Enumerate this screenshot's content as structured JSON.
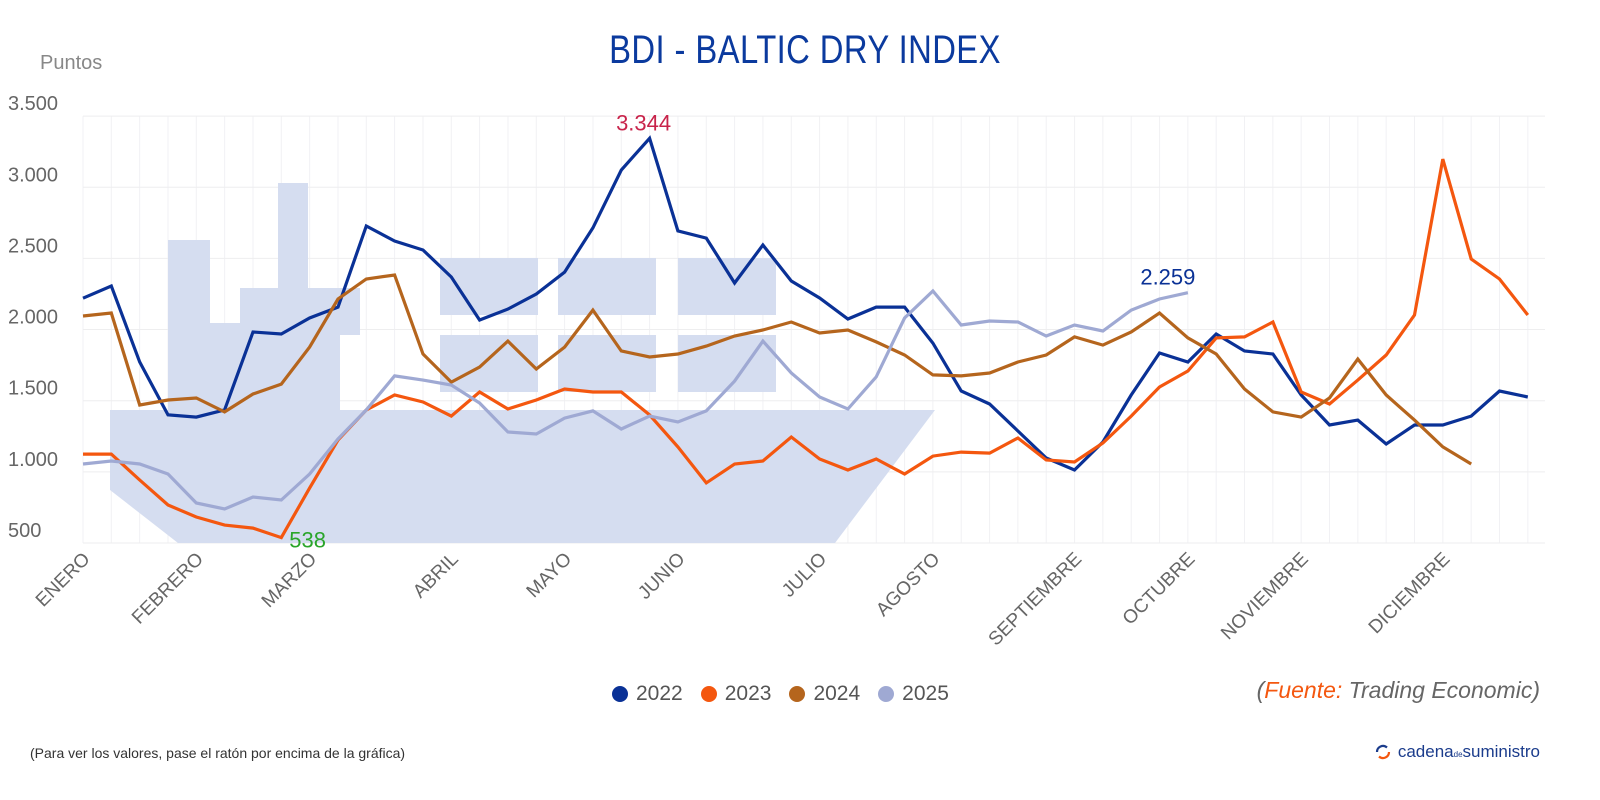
{
  "chart_data": {
    "type": "line",
    "title": "BDI - BALTIC DRY INDEX",
    "ylabel": "Puntos",
    "xlabel": "",
    "ylim": [
      500,
      3500
    ],
    "yticks": [
      "500",
      "1.000",
      "1.500",
      "2.000",
      "2.500",
      "3.000",
      "3.500"
    ],
    "ytick_values": [
      500,
      1000,
      1500,
      2000,
      2500,
      3000,
      3500
    ],
    "month_labels": [
      "ENERO",
      "FEBRERO",
      "MARZO",
      "ABRIL",
      "MAYO",
      "JUNIO",
      "JULIO",
      "AGOSTO",
      "SEPTIEMBRE",
      "OCTUBRE",
      "NOVIEMBRE",
      "DICIEMBRE"
    ],
    "month_label_weeks": [
      0,
      4,
      8,
      13,
      17,
      21,
      26,
      30,
      35,
      39,
      43,
      48
    ],
    "grid": true,
    "legend_position": "bottom",
    "series": [
      {
        "name": "2022",
        "color": "#0a3196",
        "values": [
          2220,
          2306,
          1772,
          1400,
          1385,
          1435,
          1983,
          1969,
          2081,
          2158,
          2728,
          2622,
          2559,
          2369,
          2067,
          2144,
          2250,
          2404,
          2714,
          3121,
          3344,
          2693,
          2643,
          2327,
          2594,
          2341,
          2222,
          2074,
          2158,
          2158,
          1905,
          1568,
          1477,
          1287,
          1097,
          1013,
          1210,
          1540,
          1835,
          1772,
          1969,
          1849,
          1828,
          1540,
          1329,
          1364,
          1196,
          1329,
          1329,
          1392,
          1568,
          1526
        ]
      },
      {
        "name": "2023",
        "color": "#f4570f",
        "values": [
          1125,
          1125,
          943,
          767,
          683,
          626,
          605,
          538,
          886,
          1224,
          1435,
          1540,
          1491,
          1392,
          1561,
          1442,
          1505,
          1582,
          1561,
          1561,
          1400,
          1175,
          922,
          1055,
          1076,
          1245,
          1090,
          1013,
          1090,
          985,
          1111,
          1139,
          1132,
          1238,
          1083,
          1069,
          1203,
          1392,
          1596,
          1709,
          1941,
          1948,
          2053,
          1561,
          1477,
          1645,
          1821,
          2102,
          3198,
          2496,
          2355,
          2102
        ]
      },
      {
        "name": "2024",
        "color": "#b5651d",
        "values": [
          2095,
          2116,
          1470,
          1505,
          1519,
          1421,
          1547,
          1617,
          1877,
          2215,
          2355,
          2383,
          1828,
          1631,
          1737,
          1919,
          1723,
          1877,
          2137,
          1849,
          1807,
          1828,
          1884,
          1955,
          1997,
          2053,
          1976,
          1997,
          1913,
          1821,
          1681,
          1674,
          1695,
          1772,
          1821,
          1948,
          1891,
          1983,
          2116,
          1941,
          1828,
          1582,
          1421,
          1385,
          1519,
          1793,
          1540,
          1364,
          1175,
          1055
        ]
      },
      {
        "name": "2025",
        "color": "#9fa9d3",
        "values": [
          1055,
          1076,
          1055,
          985,
          781,
          739,
          823,
          802,
          985,
          1231,
          1435,
          1674,
          1645,
          1610,
          1484,
          1280,
          1266,
          1378,
          1428,
          1301,
          1392,
          1350,
          1428,
          1638,
          1919,
          1695,
          1526,
          1442,
          1667,
          2081,
          2271,
          2032,
          2060,
          2053,
          1955,
          2032,
          1990,
          2137,
          2215,
          2259
        ]
      }
    ],
    "annotations": [
      {
        "text": "3.344",
        "series": "2022",
        "index": 20,
        "color": "#c8234a"
      },
      {
        "text": "538",
        "series": "2023",
        "index": 7,
        "color": "#2aa52a"
      },
      {
        "text": "2.259",
        "series": "2025",
        "index": 39,
        "color": "#0a3196"
      }
    ]
  },
  "source": {
    "open": "(",
    "label": "Fuente",
    "colon": ":",
    "text": " Trading Economic",
    "close": ")"
  },
  "note": "(Para ver los valores, pase el ratón por encima de la gráfica)",
  "logo": {
    "main": "cadena",
    "small": "de",
    "end": "suministro"
  },
  "colors": {
    "ship": "#d5ddf0",
    "title": "#0b3a9e"
  }
}
